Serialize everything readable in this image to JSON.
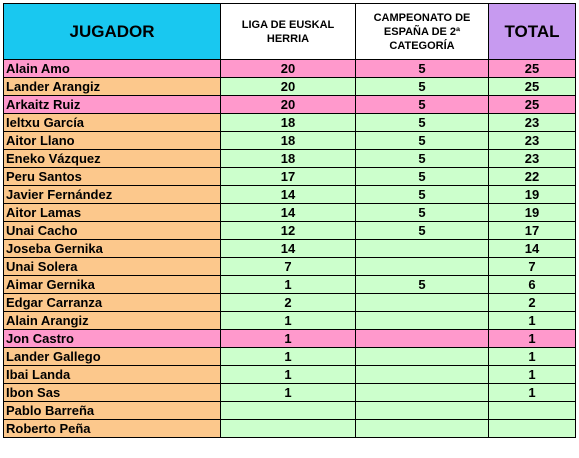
{
  "headers": {
    "player": "JUGADOR",
    "liga": "LIGA DE EUSKAL HERRIA",
    "campeonato": "CAMPEONATO DE ESPAÑA DE 2ª CATEGORÍA",
    "total": "TOTAL"
  },
  "colors": {
    "header_player": "#19c8f0",
    "header_total": "#c79af0",
    "name_cell": "#fcc88c",
    "number_cell": "#ccffcc",
    "highlight_row": "#ff99cc"
  },
  "rows": [
    {
      "name": "Alain Amo",
      "liga": "20",
      "campeonato": "5",
      "total": "25",
      "highlight": true
    },
    {
      "name": "Lander Arangiz",
      "liga": "20",
      "campeonato": "5",
      "total": "25",
      "highlight": false
    },
    {
      "name": "Arkaitz Ruiz",
      "liga": "20",
      "campeonato": "5",
      "total": "25",
      "highlight": true
    },
    {
      "name": "Ieltxu García",
      "liga": "18",
      "campeonato": "5",
      "total": "23",
      "highlight": false
    },
    {
      "name": "Aitor Llano",
      "liga": "18",
      "campeonato": "5",
      "total": "23",
      "highlight": false
    },
    {
      "name": "Eneko Vázquez",
      "liga": "18",
      "campeonato": "5",
      "total": "23",
      "highlight": false
    },
    {
      "name": "Peru Santos",
      "liga": "17",
      "campeonato": "5",
      "total": "22",
      "highlight": false
    },
    {
      "name": "Javier Fernández",
      "liga": "14",
      "campeonato": "5",
      "total": "19",
      "highlight": false
    },
    {
      "name": "Aitor Lamas",
      "liga": "14",
      "campeonato": "5",
      "total": "19",
      "highlight": false
    },
    {
      "name": "Unai Cacho",
      "liga": "12",
      "campeonato": "5",
      "total": "17",
      "highlight": false
    },
    {
      "name": "Joseba Gernika",
      "liga": "14",
      "campeonato": "",
      "total": "14",
      "highlight": false
    },
    {
      "name": "Unai Solera",
      "liga": "7",
      "campeonato": "",
      "total": "7",
      "highlight": false
    },
    {
      "name": "Aimar Gernika",
      "liga": "1",
      "campeonato": "5",
      "total": "6",
      "highlight": false
    },
    {
      "name": "Edgar Carranza",
      "liga": "2",
      "campeonato": "",
      "total": "2",
      "highlight": false
    },
    {
      "name": "Alain Arangiz",
      "liga": "1",
      "campeonato": "",
      "total": "1",
      "highlight": false
    },
    {
      "name": "Jon Castro",
      "liga": "1",
      "campeonato": "",
      "total": "1",
      "highlight": true
    },
    {
      "name": "Lander Gallego",
      "liga": "1",
      "campeonato": "",
      "total": "1",
      "highlight": false
    },
    {
      "name": "Ibai Landa",
      "liga": "1",
      "campeonato": "",
      "total": "1",
      "highlight": false
    },
    {
      "name": "Ibon Sas",
      "liga": "1",
      "campeonato": "",
      "total": "1",
      "highlight": false
    },
    {
      "name": "Pablo Barreña",
      "liga": "",
      "campeonato": "",
      "total": "",
      "highlight": false
    },
    {
      "name": "Roberto Peña",
      "liga": "",
      "campeonato": "",
      "total": "",
      "highlight": false
    }
  ]
}
